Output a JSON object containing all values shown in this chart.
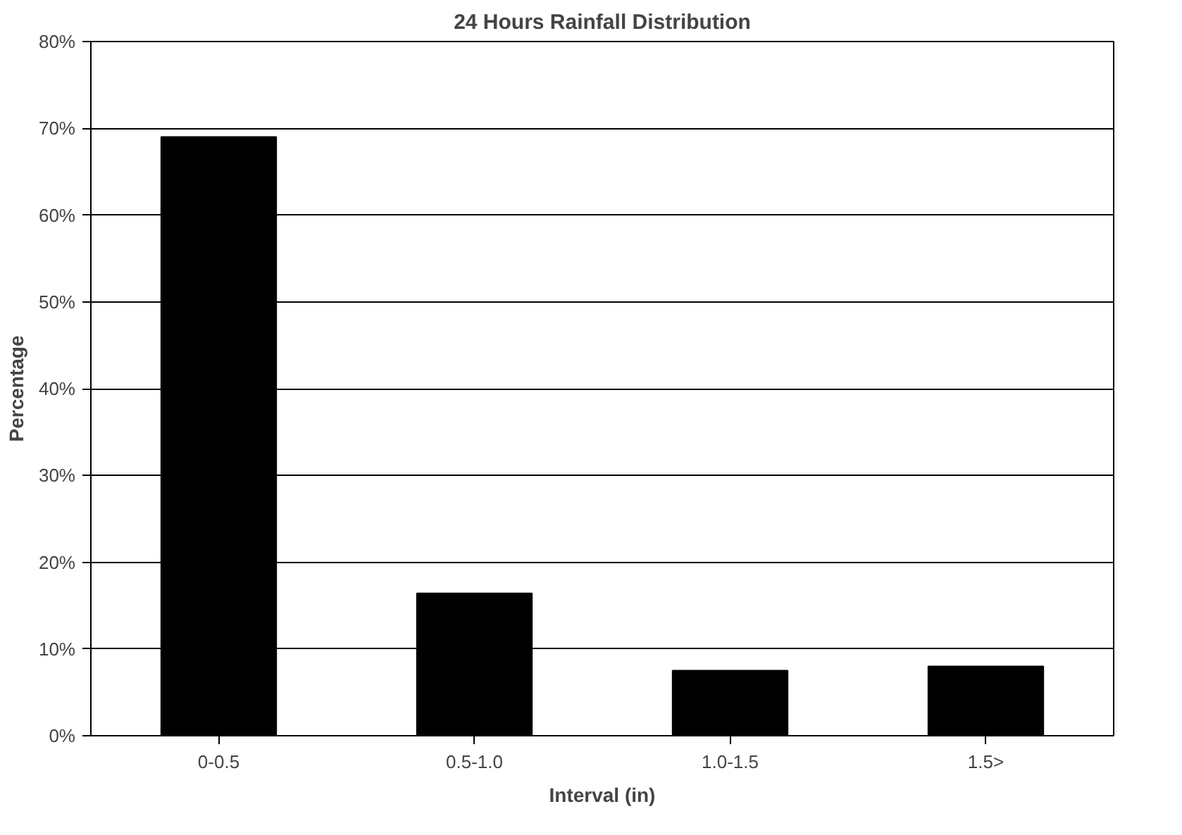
{
  "chart_data": {
    "type": "bar",
    "title": "24 Hours Rainfall Distribution",
    "xlabel": "Interval (in)",
    "ylabel": "Percentage",
    "categories": [
      "0-0.5",
      "0.5-1.0",
      "1.0-1.5",
      "1.5>"
    ],
    "values": [
      69,
      16.4,
      7.5,
      8
    ],
    "color": "#000000",
    "ylim": [
      0,
      80
    ],
    "yticks": [
      {
        "value": 0,
        "label": "0%"
      },
      {
        "value": 10,
        "label": "10%"
      },
      {
        "value": 20,
        "label": "20%"
      },
      {
        "value": 30,
        "label": "30%"
      },
      {
        "value": 40,
        "label": "40%"
      },
      {
        "value": 50,
        "label": "50%"
      },
      {
        "value": 60,
        "label": "60%"
      },
      {
        "value": 70,
        "label": "70%"
      },
      {
        "value": 80,
        "label": "80%"
      }
    ],
    "grid": "y"
  }
}
